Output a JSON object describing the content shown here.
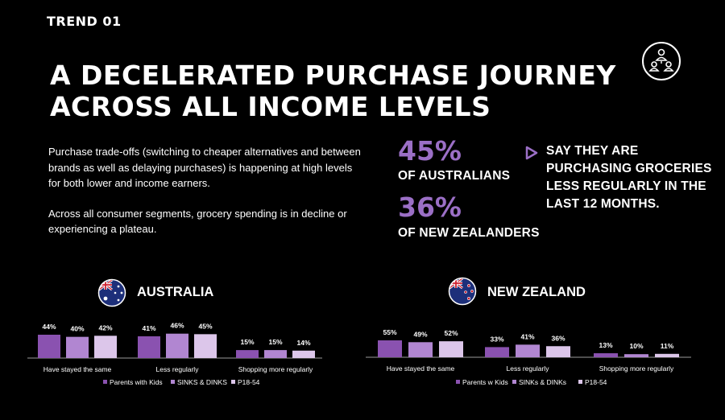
{
  "header": {
    "trend_label": "TREND 01",
    "title_line1": "A DECELERATED PURCHASE JOURNEY",
    "title_line2": "ACROSS ALL INCOME LEVELS",
    "icon": "people-network-icon"
  },
  "body": {
    "paragraph1": "Purchase trade-offs (switching to cheaper alternatives and between brands as well as delaying purchases) is happening at high levels for both lower and income earners.",
    "paragraph2": "Across all consumer segments, grocery spending is in decline or experiencing a plateau."
  },
  "stats": {
    "au_value": "45%",
    "au_label": "OF AUSTRALIANS",
    "nz_value": "36%",
    "nz_label": "OF NEW ZEALANDERS",
    "statement": "SAY THEY ARE PURCHASING GROCERIES LESS REGULARLY IN THE LAST 12 MONTHS."
  },
  "colors": {
    "background": "#000000",
    "accent": "#9b6fc6",
    "series": [
      "#8a52b0",
      "#b186d1",
      "#dcc6ea"
    ]
  },
  "charts": {
    "au_title": "AUSTRALIA",
    "nz_title": "NEW ZEALAND"
  },
  "chart_data": [
    {
      "type": "bar",
      "title": "AUSTRALIA",
      "categories": [
        "Have stayed the same",
        "Less regularly",
        "Shopping more regularly"
      ],
      "series": [
        {
          "name": "Parents with Kids",
          "values": [
            44,
            41,
            15
          ]
        },
        {
          "name": "SINKS & DINKS",
          "values": [
            40,
            46,
            15
          ]
        },
        {
          "name": "P18-54",
          "values": [
            42,
            45,
            14
          ]
        }
      ],
      "legend": "bottom",
      "ylim": [
        0,
        50
      ]
    },
    {
      "type": "bar",
      "title": "NEW ZEALAND",
      "categories": [
        "Have stayed the same",
        "Less regularly",
        "Shopping more regularly"
      ],
      "series": [
        {
          "name": "Parents w Kids",
          "values": [
            55,
            33,
            13
          ]
        },
        {
          "name": "SINKs & DINKs",
          "values": [
            49,
            41,
            10
          ]
        },
        {
          "name": "P18-54",
          "values": [
            52,
            36,
            11
          ]
        }
      ],
      "legend": "bottom",
      "ylim": [
        0,
        60
      ]
    }
  ]
}
